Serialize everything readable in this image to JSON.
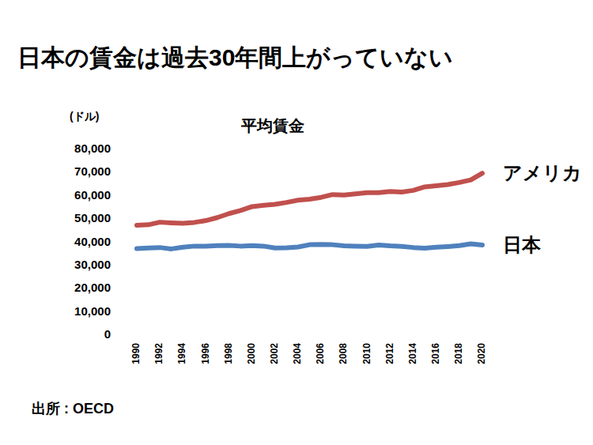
{
  "chart_data": {
    "type": "line",
    "title": "日本の賃金は過去30年間上がっていない",
    "subtitle": "平均賃金",
    "y_label": "(ドル)",
    "annotations": [
      "出所 : OECD"
    ],
    "x": [
      1990,
      1991,
      1992,
      1993,
      1994,
      1995,
      1996,
      1997,
      1998,
      1999,
      2000,
      2001,
      2002,
      2003,
      2004,
      2005,
      2006,
      2007,
      2008,
      2009,
      2010,
      2011,
      2012,
      2013,
      2014,
      2015,
      2016,
      2017,
      2018,
      2019,
      2020
    ],
    "xlim": [
      1990,
      2020
    ],
    "xticks": [
      1990,
      1992,
      1994,
      1996,
      1998,
      2000,
      2002,
      2004,
      2006,
      2008,
      2010,
      2012,
      2014,
      2016,
      2018,
      2020
    ],
    "ylim": [
      0,
      80000
    ],
    "yticks": [
      0,
      {
        "value": 10000,
        "label": "10,000"
      },
      {
        "value": 20000,
        "label": "20,000"
      },
      {
        "value": 30000,
        "label": "30,000"
      },
      {
        "value": 40000,
        "label": "40,000"
      },
      {
        "value": 50000,
        "label": "50,000"
      },
      {
        "value": 60000,
        "label": "60,000"
      },
      {
        "value": 70000,
        "label": "70,000"
      },
      {
        "value": 80000,
        "label": "80,000"
      }
    ],
    "grid": false,
    "legend": "right",
    "series": [
      {
        "name": "アメリカ",
        "color": "#c0504d",
        "values": [
          47000,
          47200,
          48300,
          48000,
          47800,
          48200,
          49000,
          50300,
          52000,
          53300,
          55000,
          55600,
          56000,
          56800,
          57800,
          58200,
          59000,
          60200,
          60000,
          60500,
          61000,
          61000,
          61500,
          61300,
          62000,
          63500,
          64000,
          64500,
          65400,
          66500,
          69400
        ]
      },
      {
        "name": "日本",
        "color": "#4f81bd",
        "values": [
          36900,
          37200,
          37400,
          36800,
          37500,
          38000,
          38000,
          38200,
          38300,
          38000,
          38200,
          38000,
          37200,
          37300,
          37600,
          38600,
          38700,
          38600,
          38100,
          38000,
          37900,
          38500,
          38100,
          37900,
          37400,
          37100,
          37500,
          37800,
          38200,
          39000,
          38500
        ]
      }
    ]
  }
}
